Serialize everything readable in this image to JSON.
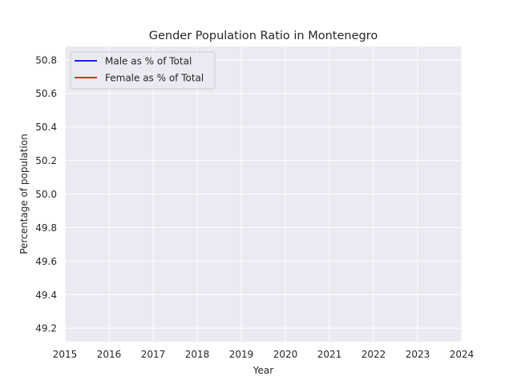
{
  "chart_data": {
    "type": "line",
    "title": "Gender Population Ratio in Montenegro",
    "xlabel": "Year",
    "ylabel": "Percentage of population",
    "xlim": [
      2015,
      2024
    ],
    "ylim": [
      49.12,
      50.88
    ],
    "x_ticks": [
      "2015",
      "2016",
      "2017",
      "2018",
      "2019",
      "2020",
      "2021",
      "2022",
      "2023",
      "2024"
    ],
    "y_ticks": [
      "49.2",
      "49.4",
      "49.6",
      "49.8",
      "50.0",
      "50.2",
      "50.4",
      "50.6",
      "50.8"
    ],
    "grid": true,
    "legend_position": "upper-left",
    "colors": {
      "plot_background": "#EAEAF2",
      "grid": "#FFFFFF"
    },
    "series": [
      {
        "name": "Male as % of Total",
        "color": "#0000FF",
        "x": [],
        "y": []
      },
      {
        "name": "Female as % of Total",
        "color": "#FF0000",
        "x": [],
        "y": []
      }
    ]
  }
}
